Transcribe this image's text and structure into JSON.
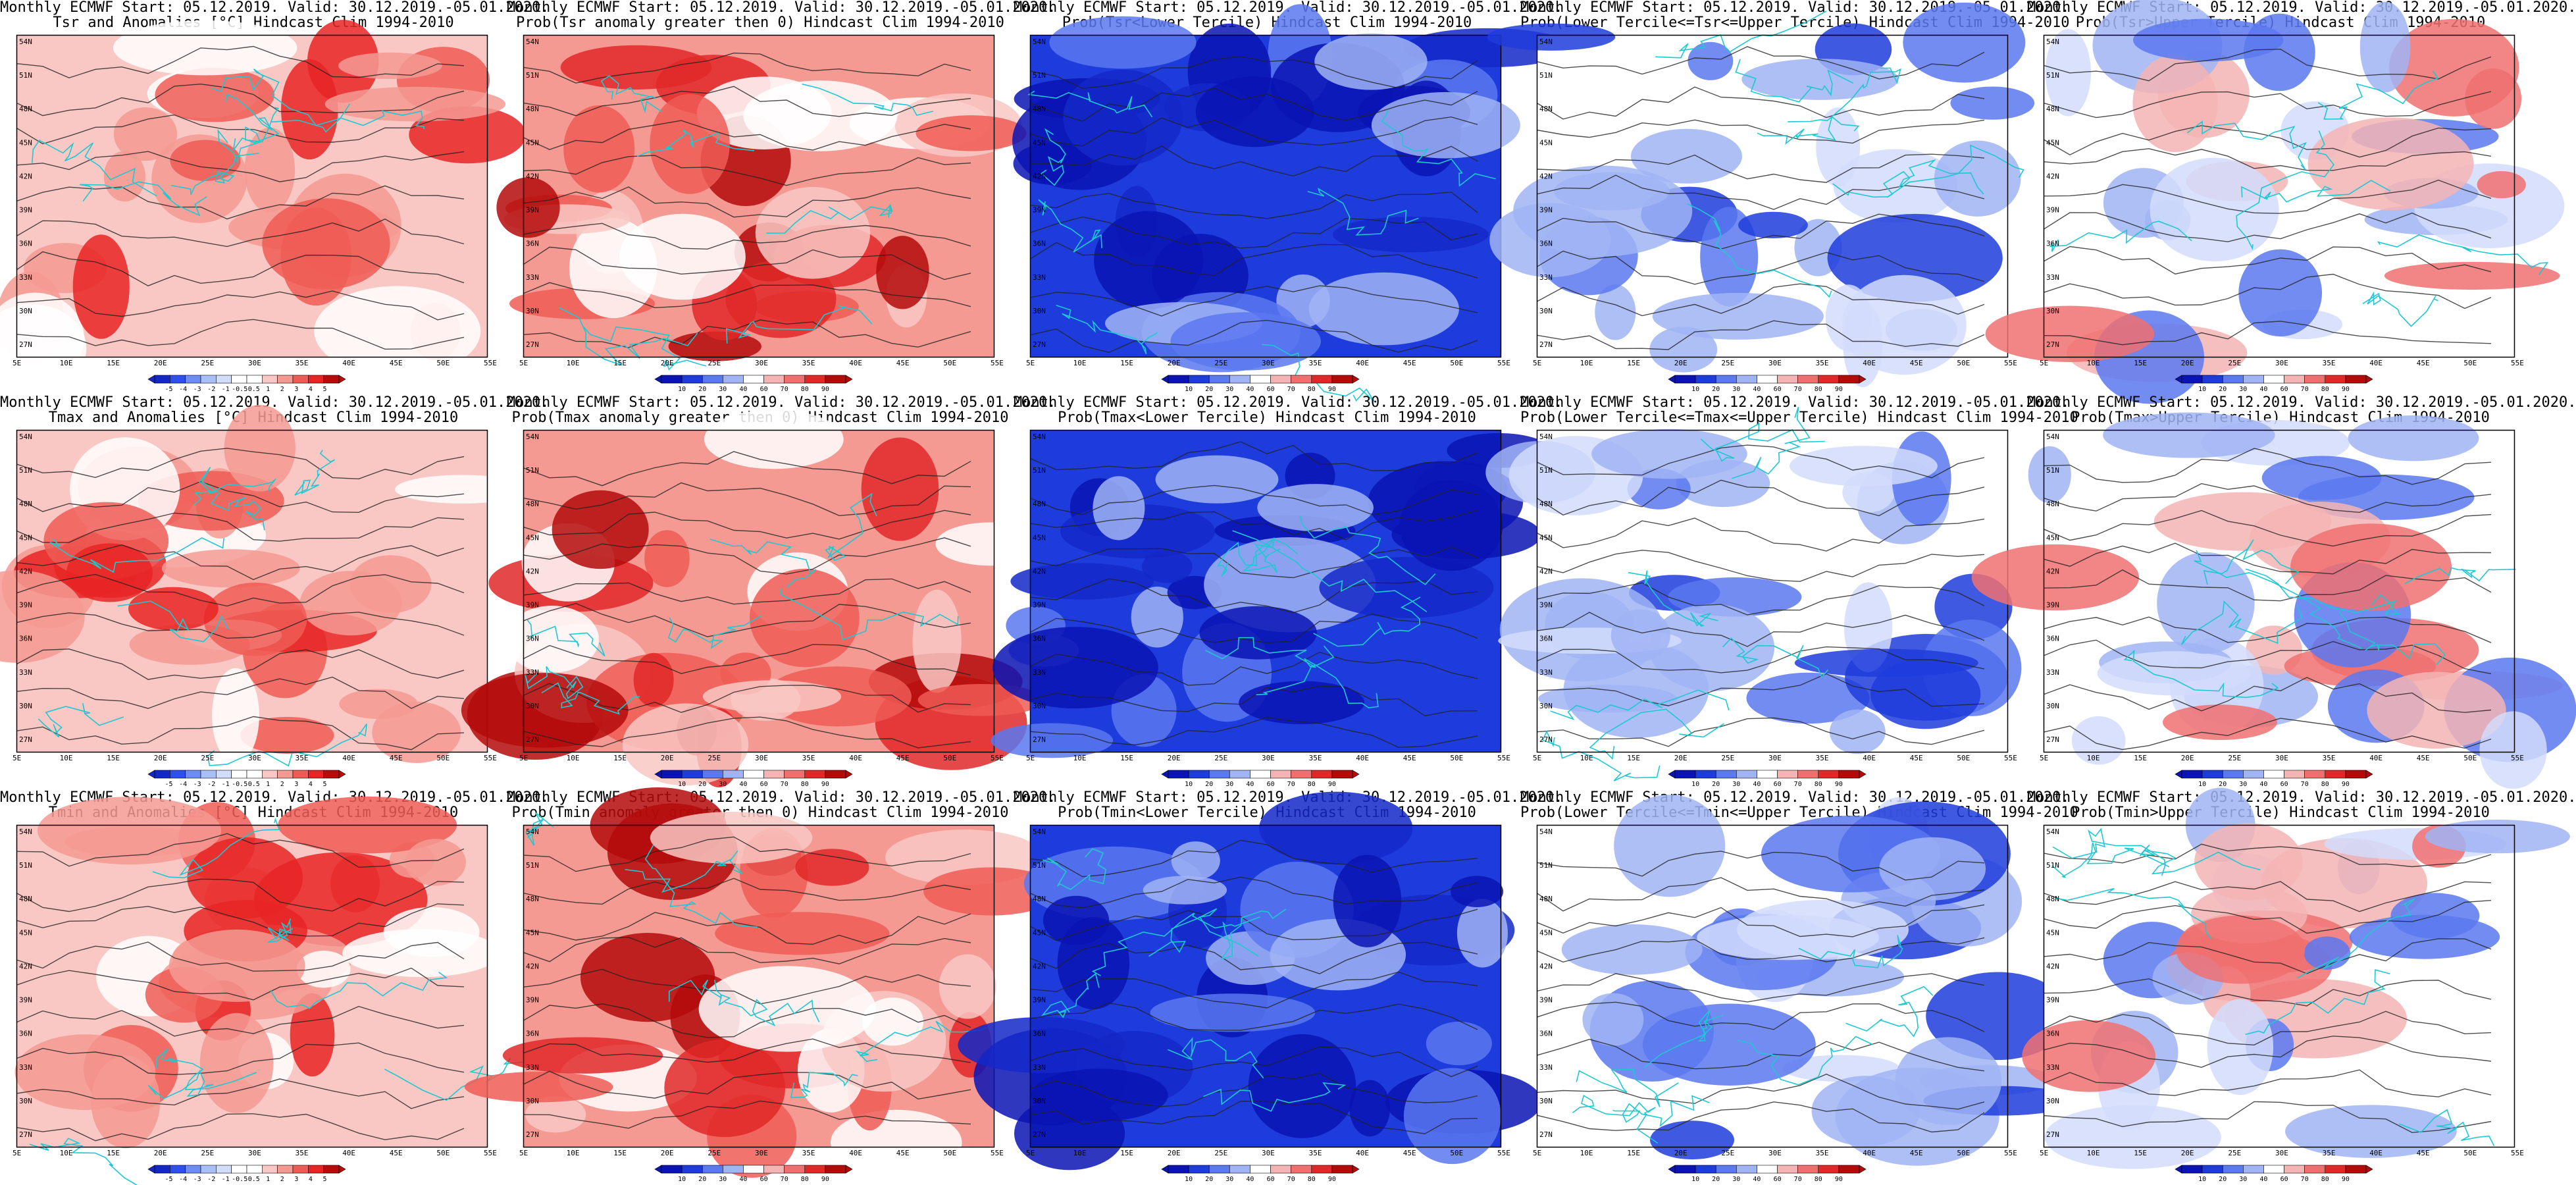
{
  "anomaly_ticks": [
    "-5",
    "-4",
    "-3",
    "-2",
    "-1",
    "-0.5",
    "0.5",
    "1",
    "2",
    "3",
    "4",
    "5"
  ],
  "prob_ticks": [
    "10",
    "20",
    "30",
    "40",
    "60",
    "70",
    "80",
    "90"
  ],
  "lon_labels": [
    "5E",
    "10E",
    "15E",
    "20E",
    "25E",
    "30E",
    "35E",
    "40E",
    "45E",
    "50E",
    "55E"
  ],
  "lat_labels": [
    "54N",
    "51N",
    "48N",
    "45N",
    "42N",
    "39N",
    "36N",
    "33N",
    "30N",
    "27N"
  ],
  "colors": {
    "anomaly_scale": [
      "#1428c8",
      "#2e50ee",
      "#6e8cf5",
      "#a8bff8",
      "#d2dcfb",
      "#ffffff",
      "#ffffff",
      "#f9c8c4",
      "#f49a93",
      "#ef5c55",
      "#e82424",
      "#b80c0c"
    ],
    "prob_scale": [
      "#0a14b4",
      "#1e3cdc",
      "#5a78f0",
      "#a0b4f5",
      "#ffffff",
      "#f5b4b4",
      "#f07070",
      "#e02828",
      "#b40a0a"
    ],
    "contour_black": "#222222",
    "contour_cyan": "#1ec8d2",
    "map_frame": "#000000"
  },
  "panels": [
    {
      "title1": "Monthly ECMWF Start: 05.12.2019. Valid: 30.12.2019.-05.01.2020.",
      "title2": "Tsr and Anomalies [°C] Hindcast Clim 1994-2010",
      "scale": "anomaly",
      "theme": "warm"
    },
    {
      "title1": "Monthly ECMWF Start: 05.12.2019. Valid: 30.12.2019.-05.01.2020.",
      "title2": "Prob(Tsr anomaly greater then 0) Hindcast Clim 1994-2010",
      "scale": "prob",
      "theme": "warm_strong"
    },
    {
      "title1": "Monthly ECMWF Start: 05.12.2019. Valid: 30.12.2019.-05.01.2020.",
      "title2": "Prob(Tsr<Lower Tercile) Hindcast Clim 1994-2010",
      "scale": "prob",
      "theme": "cold_strong"
    },
    {
      "title1": "Monthly ECMWF Start: 05.12.2019. Valid: 30.12.2019.-05.01.2020.",
      "title2": "Prob(Lower Tercile<=Tsr<=Upper Tercile) Hindcast Clim 1994-2010",
      "scale": "prob",
      "theme": "cold_light"
    },
    {
      "title1": "Monthly ECMWF Start: 05.12.2019. Valid: 30.12.2019.-05.01.2020.",
      "title2": "Prob(Tsr>Upper Tercile) Hindcast Clim 1994-2010",
      "scale": "prob",
      "theme": "mixed"
    },
    {
      "title1": "Monthly ECMWF Start: 05.12.2019. Valid: 30.12.2019.-05.01.2020.",
      "title2": "Tmax and Anomalies [°C] Hindcast Clim 1994-2010",
      "scale": "anomaly",
      "theme": "warm"
    },
    {
      "title1": "Monthly ECMWF Start: 05.12.2019. Valid: 30.12.2019.-05.01.2020.",
      "title2": "Prob(Tmax anomaly greater then 0) Hindcast Clim 1994-2010",
      "scale": "prob",
      "theme": "warm_strong"
    },
    {
      "title1": "Monthly ECMWF Start: 05.12.2019. Valid: 30.12.2019.-05.01.2020.",
      "title2": "Prob(Tmax<Lower Tercile) Hindcast Clim 1994-2010",
      "scale": "prob",
      "theme": "cold_strong"
    },
    {
      "title1": "Monthly ECMWF Start: 05.12.2019. Valid: 30.12.2019.-05.01.2020.",
      "title2": "Prob(Lower Tercile<=Tmax<=Upper Tercile) Hindcast Clim 1994-2010",
      "scale": "prob",
      "theme": "cold_light"
    },
    {
      "title1": "Monthly ECMWF Start: 05.12.2019. Valid: 30.12.2019.-05.01.2020.",
      "title2": "Prob(Tmax>Upper Tercile) Hindcast Clim 1994-2010",
      "scale": "prob",
      "theme": "mixed"
    },
    {
      "title1": "Monthly ECMWF Start: 05.12.2019. Valid: 30.12.2019.-05.01.2020.",
      "title2": "Tmin and Anomalies [°C] Hindcast Clim 1994-2010",
      "scale": "anomaly",
      "theme": "warm"
    },
    {
      "title1": "Monthly ECMWF Start: 05.12.2019. Valid: 30.12.2019.-05.01.2020.",
      "title2": "Prob(Tmin anomaly greater then 0) Hindcast Clim 1994-2010",
      "scale": "prob",
      "theme": "warm_strong"
    },
    {
      "title1": "Monthly ECMWF Start: 05.12.2019. Valid: 30.12.2019.-05.01.2020.",
      "title2": "Prob(Tmin<Lower Tercile) Hindcast Clim 1994-2010",
      "scale": "prob",
      "theme": "cold_strong"
    },
    {
      "title1": "Monthly ECMWF Start: 05.12.2019. Valid: 30.12.2019.-05.01.2020.",
      "title2": "Prob(Lower Tercile<=Tmin<=Upper Tercile) Hindcast Clim 1994-2010",
      "scale": "prob",
      "theme": "cold_light"
    },
    {
      "title1": "Monthly ECMWF Start: 05.12.2019. Valid: 30.12.2019.-05.01.2020.",
      "title2": "Prob(Tmin>Upper Tercile) Hindcast Clim 1994-2010",
      "scale": "prob",
      "theme": "mixed"
    }
  ]
}
